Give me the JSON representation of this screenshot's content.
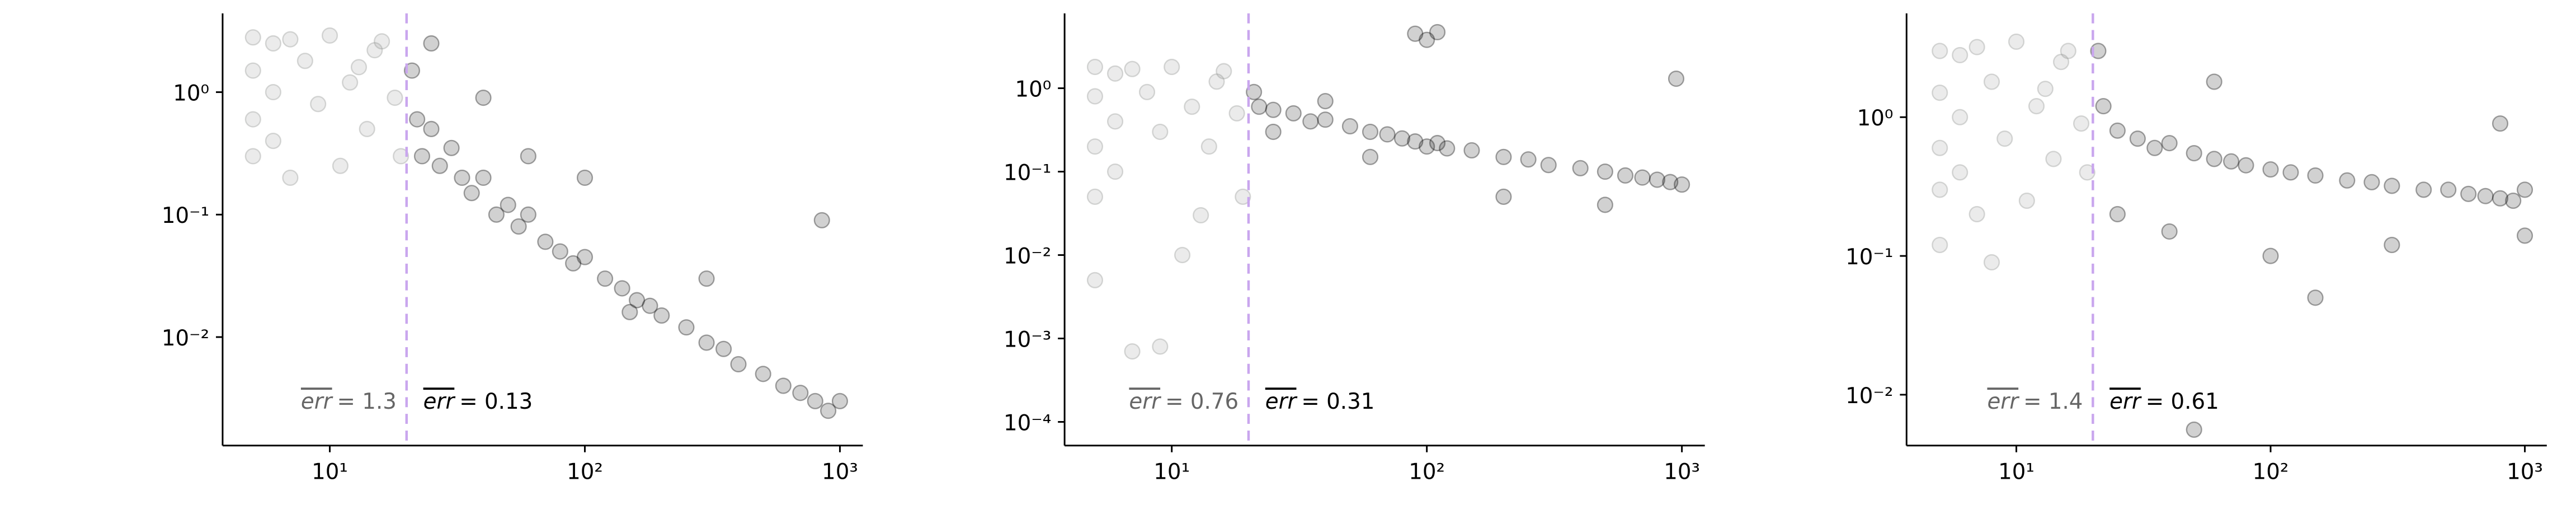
{
  "chart_data": [
    {
      "type": "scatter",
      "log_x": true,
      "log_y": true,
      "xlim": [
        3.8,
        1230
      ],
      "ylim": [
        0.0013,
        4.4
      ],
      "xticks": [
        {
          "value": 10,
          "label": "10¹"
        },
        {
          "value": 100,
          "label": "10²"
        },
        {
          "value": 1000,
          "label": "10³"
        }
      ],
      "yticks": [
        {
          "value": 0.01,
          "label": "10⁻²"
        },
        {
          "value": 0.1,
          "label": "10⁻¹"
        },
        {
          "value": 1,
          "label": "10⁰"
        }
      ],
      "vline": 20,
      "vline_color": "#c9a6ee",
      "series": [
        {
          "color": "#8f918e",
          "x": [
            5,
            5,
            5,
            5,
            6,
            6,
            6,
            7,
            8,
            9,
            10,
            12,
            14,
            16,
            18,
            19,
            7,
            11,
            15,
            13
          ],
          "values": [
            2.8,
            1.5,
            0.6,
            0.3,
            2.5,
            1.0,
            0.4,
            2.7,
            1.8,
            0.8,
            2.9,
            1.2,
            0.5,
            2.6,
            0.9,
            0.3,
            0.2,
            0.25,
            2.2,
            1.6
          ]
        },
        {
          "color": "#000000",
          "x": [
            21,
            22,
            23,
            25,
            27,
            30,
            33,
            36,
            40,
            45,
            50,
            55,
            60,
            70,
            80,
            90,
            100,
            120,
            140,
            160,
            180,
            200,
            250,
            300,
            350,
            400,
            500,
            600,
            700,
            800,
            900,
            1000,
            25,
            40,
            60,
            100,
            150,
            300,
            850
          ],
          "values": [
            1.5,
            0.6,
            0.3,
            0.5,
            0.25,
            0.35,
            0.2,
            0.15,
            0.2,
            0.1,
            0.12,
            0.08,
            0.1,
            0.06,
            0.05,
            0.04,
            0.045,
            0.03,
            0.025,
            0.02,
            0.018,
            0.015,
            0.012,
            0.009,
            0.008,
            0.006,
            0.005,
            0.004,
            0.0035,
            0.003,
            0.0025,
            0.003,
            2.5,
            0.9,
            0.3,
            0.2,
            0.016,
            0.03,
            0.09
          ]
        }
      ],
      "annotations": [
        {
          "symbol": "err",
          "text": "= 1.3",
          "color": "#666666"
        },
        {
          "symbol": "err",
          "text": "= 0.13",
          "color": "#000000"
        }
      ]
    },
    {
      "type": "scatter",
      "log_x": true,
      "log_y": true,
      "xlim": [
        3.8,
        1230
      ],
      "ylim": [
        5.2e-05,
        7.9
      ],
      "xticks": [
        {
          "value": 10,
          "label": "10¹"
        },
        {
          "value": 100,
          "label": "10²"
        },
        {
          "value": 1000,
          "label": "10³"
        }
      ],
      "yticks": [
        {
          "value": 0.0001,
          "label": "10⁻⁴"
        },
        {
          "value": 0.001,
          "label": "10⁻³"
        },
        {
          "value": 0.01,
          "label": "10⁻²"
        },
        {
          "value": 0.1,
          "label": "10⁻¹"
        },
        {
          "value": 1,
          "label": "10⁰"
        }
      ],
      "vline": 20,
      "vline_color": "#c9a6ee",
      "series": [
        {
          "color": "#8f918e",
          "x": [
            5,
            5,
            5,
            5,
            6,
            6,
            6,
            7,
            8,
            9,
            10,
            12,
            14,
            16,
            18,
            19,
            7,
            11,
            15,
            13,
            5,
            9
          ],
          "values": [
            1.8,
            0.8,
            0.2,
            0.05,
            1.5,
            0.4,
            0.1,
            1.7,
            0.9,
            0.3,
            1.8,
            0.6,
            0.2,
            1.6,
            0.5,
            0.05,
            0.0007,
            0.01,
            1.2,
            0.03,
            0.005,
            0.0008
          ]
        },
        {
          "color": "#000000",
          "x": [
            21,
            22,
            25,
            30,
            35,
            40,
            50,
            60,
            70,
            80,
            90,
            100,
            110,
            120,
            150,
            200,
            250,
            300,
            400,
            500,
            600,
            700,
            800,
            900,
            1000,
            25,
            40,
            60,
            90,
            100,
            110,
            200,
            500,
            950
          ],
          "values": [
            0.9,
            0.6,
            0.55,
            0.5,
            0.4,
            0.42,
            0.35,
            0.3,
            0.28,
            0.25,
            0.23,
            0.2,
            0.22,
            0.19,
            0.18,
            0.15,
            0.14,
            0.12,
            0.11,
            0.1,
            0.09,
            0.085,
            0.08,
            0.075,
            0.07,
            0.3,
            0.7,
            0.15,
            4.5,
            3.8,
            4.7,
            0.05,
            0.04,
            1.3
          ]
        }
      ],
      "annotations": [
        {
          "symbol": "err",
          "text": "= 0.76",
          "color": "#666666"
        },
        {
          "symbol": "err",
          "text": "= 0.31",
          "color": "#000000"
        }
      ]
    },
    {
      "type": "scatter",
      "log_x": true,
      "log_y": true,
      "xlim": [
        3.7,
        1220
      ],
      "ylim": [
        0.0043,
        5.6
      ],
      "xticks": [
        {
          "value": 10,
          "label": "10¹"
        },
        {
          "value": 100,
          "label": "10²"
        },
        {
          "value": 1000,
          "label": "10³"
        }
      ],
      "yticks": [
        {
          "value": 0.01,
          "label": "10⁻²"
        },
        {
          "value": 0.1,
          "label": "10⁻¹"
        },
        {
          "value": 1,
          "label": "10⁰"
        }
      ],
      "vline": 20,
      "vline_color": "#c9a6ee",
      "series": [
        {
          "color": "#8f918e",
          "x": [
            5,
            5,
            5,
            5,
            6,
            6,
            6,
            7,
            8,
            9,
            10,
            12,
            14,
            16,
            18,
            19,
            7,
            11,
            15,
            13,
            5,
            8
          ],
          "values": [
            3.0,
            1.5,
            0.6,
            0.3,
            2.8,
            1.0,
            0.4,
            3.2,
            1.8,
            0.7,
            3.5,
            1.2,
            0.5,
            3.0,
            0.9,
            0.4,
            0.2,
            0.25,
            2.5,
            1.6,
            0.12,
            0.09
          ]
        },
        {
          "color": "#000000",
          "x": [
            21,
            22,
            25,
            30,
            35,
            40,
            50,
            60,
            70,
            80,
            100,
            120,
            150,
            200,
            250,
            300,
            400,
            500,
            600,
            700,
            800,
            900,
            1000,
            25,
            40,
            60,
            100,
            150,
            300,
            50,
            1000,
            800
          ],
          "values": [
            3.0,
            1.2,
            0.8,
            0.7,
            0.6,
            0.65,
            0.55,
            0.5,
            0.48,
            0.45,
            0.42,
            0.4,
            0.38,
            0.35,
            0.34,
            0.32,
            0.3,
            0.3,
            0.28,
            0.27,
            0.26,
            0.25,
            0.3,
            0.2,
            0.15,
            1.8,
            0.1,
            0.05,
            0.12,
            0.0056,
            0.14,
            0.9
          ]
        }
      ],
      "annotations": [
        {
          "symbol": "err",
          "text": "= 1.4",
          "color": "#666666"
        },
        {
          "symbol": "err",
          "text": "= 0.61",
          "color": "#000000"
        }
      ]
    }
  ]
}
